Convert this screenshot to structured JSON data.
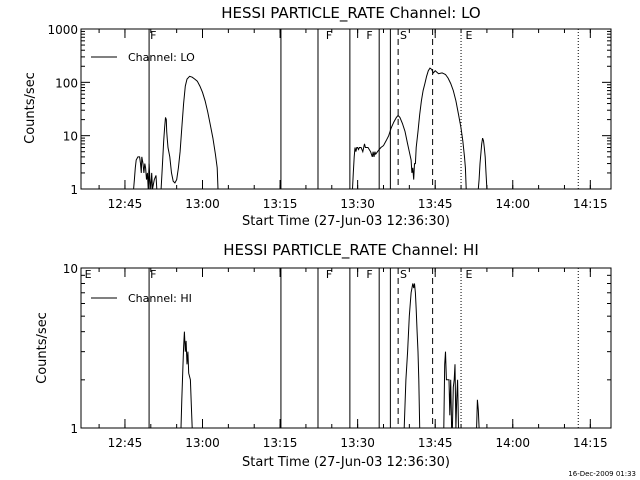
{
  "stamp": "16-Dec-2009 01:33",
  "chart_data": [
    {
      "type": "line",
      "title": "HESSI PARTICLE_RATE Channel: LO",
      "xlabel": "Start Time (27-Jun-03 12:36:30)",
      "ylabel": "Counts/sec",
      "yscale": "log",
      "ylim": [
        1,
        1000
      ],
      "xlim": [
        "12:36:30",
        "14:19:00"
      ],
      "xticks": [
        "12:45",
        "13:00",
        "13:15",
        "13:30",
        "13:45",
        "14:00",
        "14:15"
      ],
      "yticks": [
        "1",
        "10",
        "100",
        "1000"
      ],
      "legend": "Channel: LO",
      "legend_position": "top-left",
      "flags": [
        {
          "label": "F",
          "time": "12:49:40"
        },
        {
          "label": "F",
          "time": "13:23:40"
        },
        {
          "label": "F",
          "time": "13:31:30"
        },
        {
          "label": "S",
          "time": "13:38:00"
        }
      ],
      "markers": [
        {
          "time": "12:49:40",
          "style": "solid"
        },
        {
          "time": "13:15:10",
          "style": "solid"
        },
        {
          "time": "13:22:20",
          "style": "solid"
        },
        {
          "time": "13:28:30",
          "style": "solid"
        },
        {
          "time": "13:34:10",
          "style": "solid"
        },
        {
          "time": "13:36:20",
          "style": "solid"
        },
        {
          "time": "13:37:50",
          "style": "dashed"
        },
        {
          "time": "13:44:30",
          "style": "dashed"
        },
        {
          "time": "13:50:00",
          "style": "dotted"
        },
        {
          "time": "14:12:40",
          "style": "dotted"
        }
      ],
      "end_flags": [
        {
          "label": "E",
          "time": "13:50:40"
        }
      ],
      "segments": [
        [
          [
            "12:46:40",
            1
          ],
          [
            "12:46:50",
            1.5
          ],
          [
            "12:47:00",
            2.5
          ],
          [
            "12:47:10",
            3.5
          ],
          [
            "12:47:30",
            4
          ],
          [
            "12:47:50",
            4
          ],
          [
            "12:48:00",
            3
          ],
          [
            "12:48:10",
            2
          ],
          [
            "12:48:15",
            4
          ],
          [
            "12:48:30",
            3
          ],
          [
            "12:48:40",
            2
          ],
          [
            "12:48:50",
            3
          ],
          [
            "12:49:00",
            2.5
          ],
          [
            "12:49:10",
            1.5
          ],
          [
            "12:49:20",
            2
          ],
          [
            "12:49:30",
            1
          ],
          [
            "12:49:40",
            3
          ],
          [
            "12:49:50",
            1.5
          ],
          [
            "12:50:00",
            1
          ],
          [
            "12:50:10",
            2
          ],
          [
            "12:50:20",
            1
          ],
          [
            "12:50:40",
            1.5
          ],
          [
            "12:51:00",
            1.8
          ],
          [
            "12:51:10",
            1
          ]
        ],
        [
          [
            "12:52:00",
            1
          ],
          [
            "12:52:10",
            2
          ],
          [
            "12:52:30",
            8
          ],
          [
            "12:52:40",
            14
          ],
          [
            "12:52:50",
            22
          ],
          [
            "12:53:00",
            20
          ],
          [
            "12:53:05",
            12
          ],
          [
            "12:53:10",
            9
          ],
          [
            "12:53:20",
            6
          ],
          [
            "12:53:40",
            4
          ],
          [
            "12:54:00",
            2
          ],
          [
            "12:54:20",
            1.4
          ],
          [
            "12:54:40",
            1.3
          ],
          [
            "12:55:00",
            1.5
          ],
          [
            "12:55:20",
            2.5
          ],
          [
            "12:55:40",
            5
          ],
          [
            "12:56:00",
            14
          ],
          [
            "12:56:20",
            40
          ],
          [
            "12:56:40",
            85
          ],
          [
            "12:57:00",
            115
          ],
          [
            "12:57:30",
            130
          ],
          [
            "12:58:00",
            125
          ],
          [
            "12:58:30",
            115
          ],
          [
            "12:59:00",
            105
          ],
          [
            "12:59:30",
            85
          ],
          [
            "13:00:00",
            65
          ],
          [
            "13:00:30",
            45
          ],
          [
            "13:01:00",
            28
          ],
          [
            "13:01:30",
            16
          ],
          [
            "13:02:00",
            9
          ],
          [
            "13:02:30",
            4.5
          ],
          [
            "13:02:50",
            2.5
          ],
          [
            "13:03:00",
            1
          ]
        ],
        [
          [
            "13:29:00",
            1
          ],
          [
            "13:29:10",
            2
          ],
          [
            "13:29:20",
            4
          ],
          [
            "13:29:30",
            6
          ],
          [
            "13:29:40",
            5
          ],
          [
            "13:29:50",
            6
          ],
          [
            "13:30:00",
            6
          ],
          [
            "13:30:10",
            5.5
          ],
          [
            "13:30:20",
            6
          ],
          [
            "13:30:40",
            6
          ],
          [
            "13:31:00",
            5
          ],
          [
            "13:31:10",
            6
          ],
          [
            "13:31:20",
            7
          ],
          [
            "13:31:30",
            6
          ],
          [
            "13:31:40",
            6
          ],
          [
            "13:32:00",
            6
          ],
          [
            "13:32:30",
            5
          ],
          [
            "13:32:50",
            4
          ],
          [
            "13:33:00",
            5
          ],
          [
            "13:33:10",
            4
          ],
          [
            "13:33:20",
            5
          ],
          [
            "13:33:30",
            4.5
          ],
          [
            "13:33:50",
            5
          ],
          [
            "13:34:10",
            5.5
          ],
          [
            "13:34:30",
            6
          ],
          [
            "13:35:00",
            6.5
          ],
          [
            "13:35:30",
            8
          ],
          [
            "13:36:00",
            10
          ],
          [
            "13:36:30",
            14
          ],
          [
            "13:37:00",
            18
          ],
          [
            "13:37:30",
            22
          ],
          [
            "13:37:50",
            24
          ],
          [
            "13:38:10",
            22
          ],
          [
            "13:38:40",
            17
          ],
          [
            "13:39:10",
            12
          ],
          [
            "13:39:40",
            7
          ],
          [
            "13:40:00",
            5
          ],
          [
            "13:40:20",
            3.5
          ],
          [
            "13:40:30",
            2
          ],
          [
            "13:40:40",
            2.5
          ],
          [
            "13:40:50",
            1.5
          ],
          [
            "13:41:00",
            3
          ],
          [
            "13:41:10",
            3
          ],
          [
            "13:41:20",
            6
          ],
          [
            "13:41:40",
            12
          ],
          [
            "13:42:00",
            25
          ],
          [
            "13:42:20",
            45
          ],
          [
            "13:42:40",
            70
          ],
          [
            "13:43:00",
            95
          ],
          [
            "13:43:20",
            130
          ],
          [
            "13:43:40",
            165
          ],
          [
            "13:44:00",
            185
          ],
          [
            "13:44:20",
            175
          ],
          [
            "13:44:30",
            160
          ],
          [
            "13:44:40",
            150
          ],
          [
            "13:45:00",
            165
          ],
          [
            "13:45:20",
            155
          ],
          [
            "13:45:40",
            145
          ],
          [
            "13:46:00",
            148
          ],
          [
            "13:46:20",
            150
          ],
          [
            "13:46:40",
            145
          ],
          [
            "13:47:00",
            140
          ],
          [
            "13:47:30",
            120
          ],
          [
            "13:48:00",
            95
          ],
          [
            "13:48:30",
            70
          ],
          [
            "13:49:00",
            45
          ],
          [
            "13:49:30",
            25
          ],
          [
            "13:50:00",
            14
          ],
          [
            "13:50:20",
            8
          ],
          [
            "13:50:40",
            4
          ],
          [
            "13:50:50",
            2.5
          ],
          [
            "13:51:00",
            1
          ]
        ],
        [
          [
            "13:53:20",
            1
          ],
          [
            "13:53:30",
            1.5
          ],
          [
            "13:53:40",
            3
          ],
          [
            "13:54:00",
            7
          ],
          [
            "13:54:10",
            9
          ],
          [
            "13:54:20",
            8
          ],
          [
            "13:54:30",
            6
          ],
          [
            "13:54:40",
            4
          ],
          [
            "13:54:50",
            2
          ],
          [
            "13:55:00",
            1
          ]
        ]
      ]
    },
    {
      "type": "line",
      "title": "HESSI PARTICLE_RATE Channel: HI",
      "xlabel": "Start Time (27-Jun-03 12:36:30)",
      "ylabel": "Counts/sec",
      "yscale": "log",
      "ylim": [
        1,
        10
      ],
      "xlim": [
        "12:36:30",
        "14:19:00"
      ],
      "xticks": [
        "12:45",
        "13:00",
        "13:15",
        "13:30",
        "13:45",
        "14:00",
        "14:15"
      ],
      "yticks": [
        "1",
        "10"
      ],
      "legend": "Channel: HI",
      "legend_position": "top-left",
      "flags": [
        {
          "label": "E",
          "time": "12:37:00"
        },
        {
          "label": "F",
          "time": "12:49:40"
        },
        {
          "label": "F",
          "time": "13:23:40"
        },
        {
          "label": "F",
          "time": "13:31:30"
        },
        {
          "label": "S",
          "time": "13:38:00"
        }
      ],
      "markers": [
        {
          "time": "12:49:40",
          "style": "solid"
        },
        {
          "time": "13:15:10",
          "style": "solid"
        },
        {
          "time": "13:22:20",
          "style": "solid"
        },
        {
          "time": "13:28:30",
          "style": "solid"
        },
        {
          "time": "13:34:10",
          "style": "solid"
        },
        {
          "time": "13:36:20",
          "style": "solid"
        },
        {
          "time": "13:37:50",
          "style": "dashed"
        },
        {
          "time": "13:44:30",
          "style": "dashed"
        },
        {
          "time": "13:50:00",
          "style": "dotted"
        },
        {
          "time": "14:12:40",
          "style": "dotted"
        }
      ],
      "end_flags": [
        {
          "label": "E",
          "time": "13:50:40"
        }
      ],
      "segments": [
        [
          [
            "12:55:50",
            1
          ],
          [
            "12:56:00",
            1.5
          ],
          [
            "12:56:10",
            2.2
          ],
          [
            "12:56:20",
            3.2
          ],
          [
            "12:56:30",
            4
          ],
          [
            "12:56:40",
            3
          ],
          [
            "12:56:50",
            3.5
          ],
          [
            "12:57:00",
            2.5
          ],
          [
            "12:57:10",
            3
          ],
          [
            "12:57:20",
            2.2
          ],
          [
            "12:57:40",
            2
          ],
          [
            "12:57:50",
            1.4
          ],
          [
            "12:58:00",
            1
          ]
        ],
        [
          [
            "13:39:00",
            1
          ],
          [
            "13:39:20",
            2
          ],
          [
            "13:39:40",
            3
          ],
          [
            "13:40:00",
            5
          ],
          [
            "13:40:20",
            7
          ],
          [
            "13:40:40",
            8
          ],
          [
            "13:40:50",
            7.5
          ],
          [
            "13:41:00",
            8
          ],
          [
            "13:41:10",
            7
          ],
          [
            "13:41:20",
            5.5
          ],
          [
            "13:41:30",
            4
          ],
          [
            "13:41:40",
            3
          ],
          [
            "13:41:50",
            2
          ],
          [
            "13:42:00",
            1
          ]
        ],
        [
          [
            "13:46:40",
            1
          ],
          [
            "13:46:50",
            2.5
          ],
          [
            "13:47:00",
            3
          ],
          [
            "13:47:10",
            2
          ],
          [
            "13:47:20",
            2
          ],
          [
            "13:47:40",
            2
          ],
          [
            "13:47:50",
            1.2
          ],
          [
            "13:48:00",
            2
          ],
          [
            "13:48:10",
            1
          ],
          [
            "13:48:20",
            1
          ],
          [
            "13:48:30",
            1.8
          ],
          [
            "13:48:40",
            2
          ],
          [
            "13:48:50",
            2.5
          ],
          [
            "13:49:00",
            1
          ],
          [
            "13:49:10",
            1.5
          ],
          [
            "13:49:20",
            2
          ],
          [
            "13:49:30",
            1
          ]
        ],
        [
          [
            "13:53:00",
            1
          ],
          [
            "13:53:10",
            1.5
          ],
          [
            "13:53:20",
            1.3
          ],
          [
            "13:53:30",
            1
          ]
        ]
      ]
    }
  ]
}
